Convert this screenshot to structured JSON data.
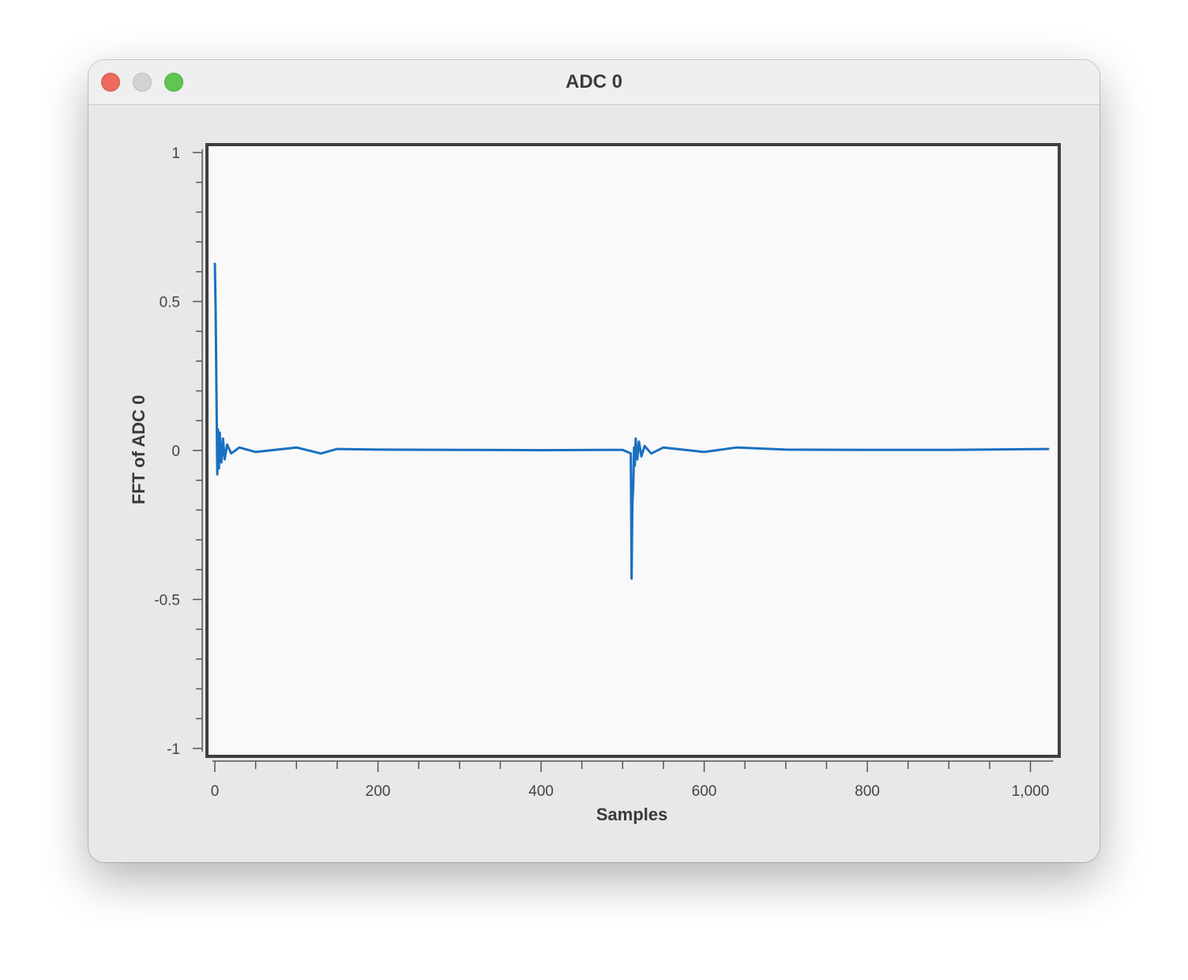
{
  "window": {
    "title": "ADC 0"
  },
  "chart_data": {
    "type": "line",
    "title": "",
    "xlabel": "Samples",
    "ylabel": "FFT of ADC 0",
    "xlim": [
      -3,
      1028
    ],
    "ylim": [
      -1,
      1
    ],
    "x_ticks": [
      0,
      200,
      400,
      600,
      800,
      1000
    ],
    "x_tick_labels": [
      "0",
      "200",
      "400",
      "600",
      "800",
      "1,000"
    ],
    "y_ticks": [
      1,
      0.5,
      0,
      -0.5,
      -1
    ],
    "y_tick_labels": [
      "1",
      "0.5",
      "0",
      "-0.5",
      "-1"
    ],
    "grid": false,
    "line_color": "#1a70c0",
    "series": [
      {
        "x": [
          0,
          1,
          2,
          3,
          4,
          5,
          6,
          8,
          10,
          12,
          15,
          20,
          30,
          50,
          100,
          130,
          150,
          200,
          300,
          400,
          500,
          510,
          511,
          512,
          513,
          514,
          515,
          516,
          518,
          520,
          523,
          527,
          535,
          550,
          600,
          640,
          700,
          800,
          900,
          1023
        ],
        "y": [
          0.63,
          0.47,
          0.18,
          -0.08,
          0.07,
          -0.06,
          0.06,
          -0.04,
          0.04,
          -0.03,
          0.02,
          -0.01,
          0.01,
          -0.005,
          0.01,
          -0.01,
          0.005,
          0.003,
          0.002,
          0.001,
          0.002,
          -0.01,
          -0.43,
          -0.18,
          -0.12,
          0.01,
          -0.05,
          0.04,
          -0.03,
          0.03,
          -0.02,
          0.015,
          -0.01,
          0.01,
          -0.005,
          0.01,
          0.003,
          0.002,
          0.002,
          0.005
        ]
      }
    ]
  },
  "icons": {
    "close": "close-icon",
    "minimize": "minimize-icon",
    "zoom": "zoom-icon"
  }
}
